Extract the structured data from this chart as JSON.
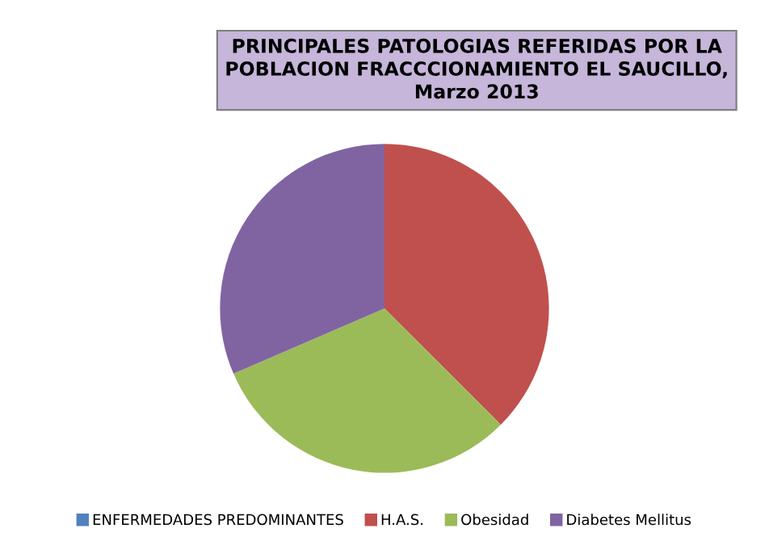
{
  "chart_data": {
    "type": "pie",
    "title": "PRINCIPALES PATOLOGIAS REFERIDAS POR LA POBLACION FRACCCIONAMIENTO EL SAUCILLO, Marzo 2013",
    "categories": [
      "ENFERMEDADES PREDOMINANTES",
      "H.A.S.",
      "Obesidad",
      "Diabetes Mellitus"
    ],
    "values": [
      0,
      37.5,
      31,
      31.5
    ],
    "colors": [
      "#4f81bd",
      "#c0504d",
      "#9bbb59",
      "#8064a2"
    ],
    "legend": "bottom"
  }
}
